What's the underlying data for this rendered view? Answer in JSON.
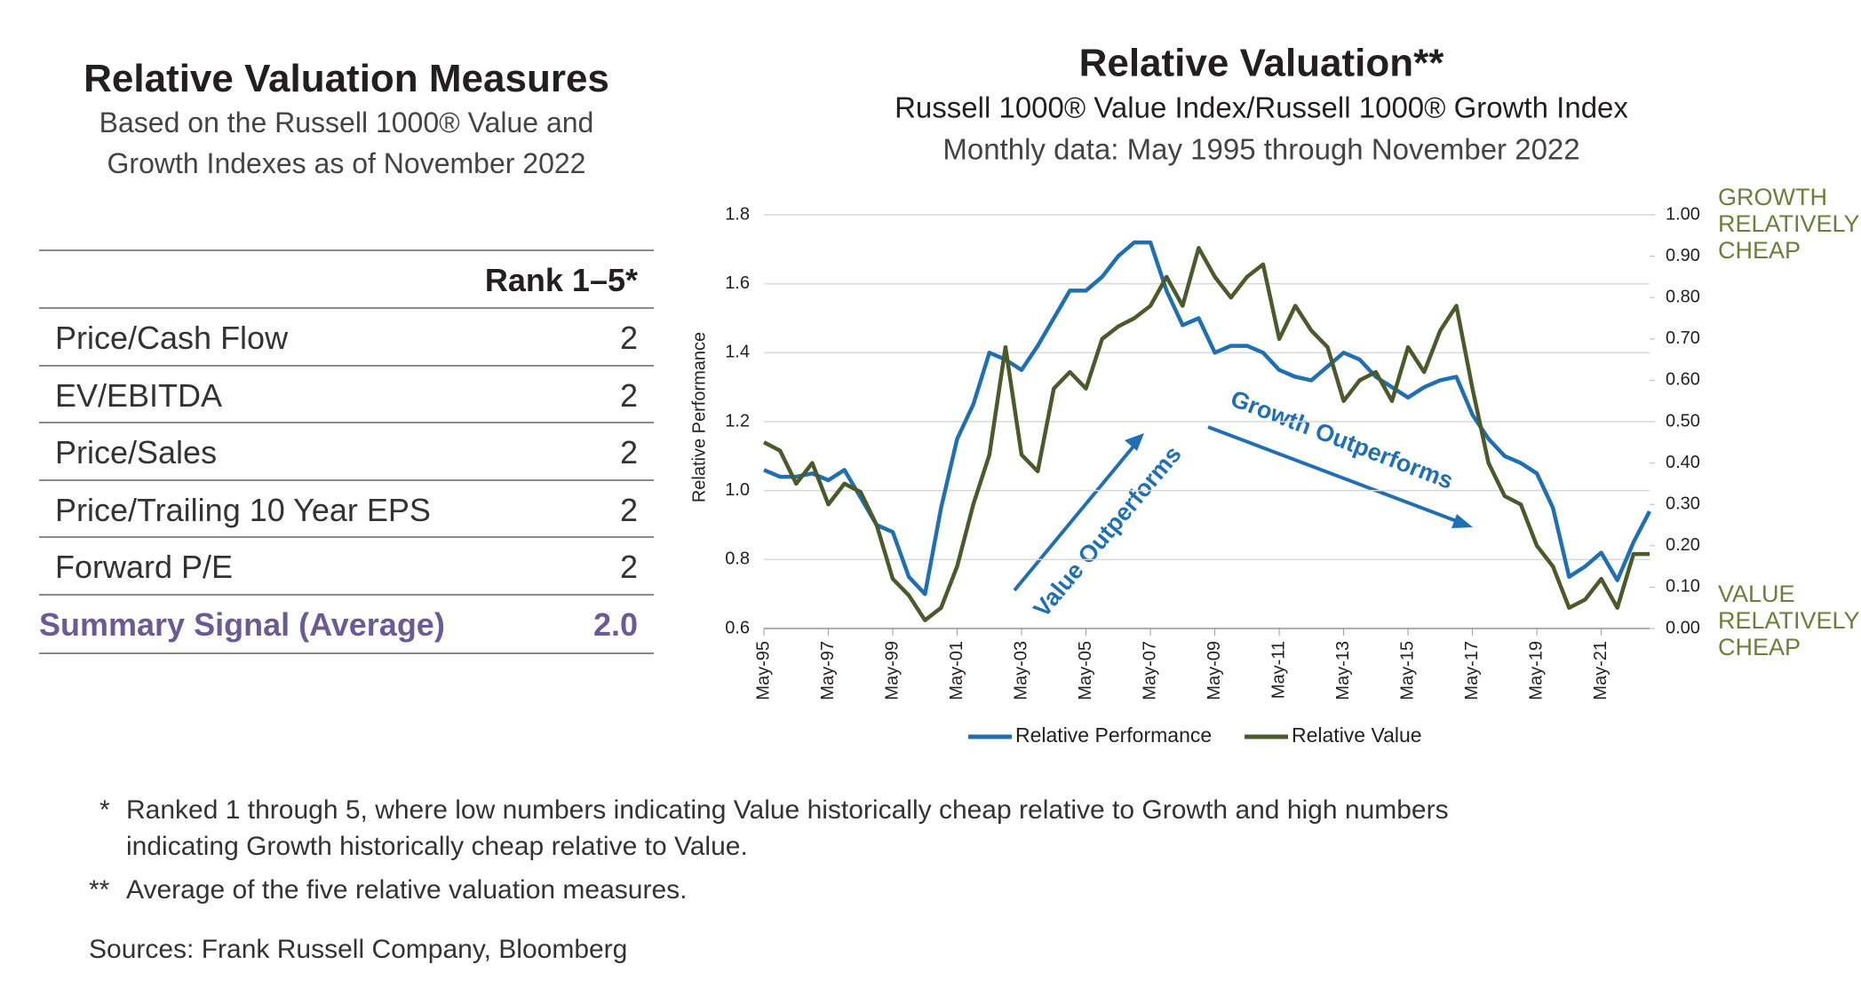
{
  "table": {
    "title": "Relative Valuation Measures",
    "subtitle": [
      "Based on the Russell 1000® Value and",
      "Growth Indexes as of November 2022"
    ],
    "header": "Rank 1–5*",
    "rows": [
      [
        "Price/Cash Flow",
        "2"
      ],
      [
        "EV/EBITDA",
        "2"
      ],
      [
        "Price/Sales",
        "2"
      ],
      [
        "Price/Trailing 10 Year EPS",
        "2"
      ],
      [
        "Forward P/E",
        "2"
      ]
    ],
    "summary": [
      "Summary Signal (Average)",
      "2.0"
    ]
  },
  "chart_data": {
    "type": "line",
    "title": "Relative Valuation**",
    "subtitle": "Russell 1000® Value Index/Russell 1000® Growth Index",
    "subtitle2": "Monthly data: May 1995 through November 2022",
    "ylabel": "Relative Performance",
    "y2_top_label": [
      "GROWTH",
      "RELATIVELY",
      "CHEAP"
    ],
    "y2_bottom_label": [
      "VALUE",
      "RELATIVELY",
      "CHEAP"
    ],
    "annotations": [
      "Value Outperforms",
      "Growth Outperforms"
    ],
    "categories": [
      "May-95",
      null,
      null,
      null,
      "May-97",
      null,
      null,
      null,
      "May-99",
      null,
      null,
      null,
      "May-01",
      null,
      null,
      null,
      "May-03",
      null,
      null,
      null,
      "May-05",
      null,
      null,
      null,
      "May-07",
      null,
      null,
      null,
      "May-09",
      null,
      null,
      null,
      "May-11",
      null,
      null,
      null,
      "May-13",
      null,
      null,
      null,
      "May-15",
      null,
      null,
      null,
      "May-17",
      null,
      null,
      null,
      "May-19",
      null,
      null,
      null,
      "May-21",
      null,
      null,
      null
    ],
    "series": [
      {
        "name": "Relative Performance",
        "color": "#1f6fb2",
        "axis": "y",
        "values": [
          1.06,
          1.04,
          1.04,
          1.05,
          1.03,
          1.06,
          0.98,
          0.9,
          0.88,
          0.75,
          0.7,
          0.95,
          1.15,
          1.25,
          1.4,
          1.38,
          1.35,
          1.42,
          1.5,
          1.58,
          1.58,
          1.62,
          1.68,
          1.72,
          1.72,
          1.58,
          1.48,
          1.5,
          1.4,
          1.42,
          1.42,
          1.4,
          1.35,
          1.33,
          1.32,
          1.36,
          1.4,
          1.38,
          1.33,
          1.3,
          1.27,
          1.3,
          1.32,
          1.33,
          1.22,
          1.15,
          1.1,
          1.08,
          1.05,
          0.95,
          0.75,
          0.78,
          0.82,
          0.74,
          0.85,
          0.94
        ]
      },
      {
        "name": "Relative Value",
        "color": "#4b5a2a",
        "axis": "y2",
        "values": [
          0.45,
          0.43,
          0.35,
          0.4,
          0.3,
          0.35,
          0.33,
          0.25,
          0.12,
          0.08,
          0.02,
          0.05,
          0.15,
          0.3,
          0.42,
          0.68,
          0.42,
          0.38,
          0.58,
          0.62,
          0.58,
          0.7,
          0.73,
          0.75,
          0.78,
          0.85,
          0.78,
          0.92,
          0.85,
          0.8,
          0.85,
          0.88,
          0.7,
          0.78,
          0.72,
          0.68,
          0.55,
          0.6,
          0.62,
          0.55,
          0.68,
          0.62,
          0.72,
          0.78,
          0.58,
          0.4,
          0.32,
          0.3,
          0.2,
          0.15,
          0.05,
          0.07,
          0.12,
          0.05,
          0.18,
          0.18
        ]
      }
    ],
    "ylim": [
      0.6,
      1.8
    ],
    "yticks": [
      0.6,
      0.8,
      {
        "value": 1,
        "label": "1.0"
      },
      1.2,
      1.4,
      1.6,
      1.8
    ],
    "y2lim": [
      0,
      1
    ],
    "y2ticks": [
      {
        "value": 0,
        "label": "0.00"
      },
      {
        "value": 0.1,
        "label": "0.10"
      },
      {
        "value": 0.2,
        "label": "0.20"
      },
      {
        "value": 0.3,
        "label": "0.30"
      },
      {
        "value": 0.4,
        "label": "0.40"
      },
      {
        "value": 0.5,
        "label": "0.50"
      },
      {
        "value": 0.6,
        "label": "0.60"
      },
      {
        "value": 0.7,
        "label": "0.70"
      },
      {
        "value": 0.8,
        "label": "0.80"
      },
      {
        "value": 0.9,
        "label": "0.90"
      },
      {
        "value": 1,
        "label": "1.00"
      }
    ],
    "grid": true,
    "legend": "bottom"
  },
  "footnotes": [
    [
      "*",
      "Ranked 1 through 5, where low numbers indicating Value historically cheap relative to Growth and high numbers",
      "indicating Growth historically cheap relative to Value."
    ],
    [
      "**",
      "Average of the five relative valuation measures."
    ]
  ],
  "source": "Sources: Frank Russell Company, Bloomberg"
}
